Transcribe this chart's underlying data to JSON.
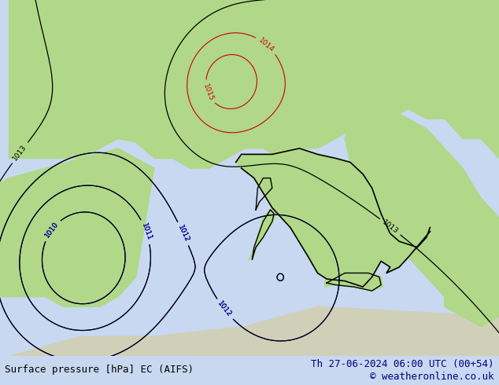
{
  "title_left": "Surface pressure [hPa] EC (AIFS)",
  "title_right": "Th 27-06-2024 06:00 UTC (00+54)",
  "copyright": "© weatheronline.co.uk",
  "bg_color": "#c8e0f0",
  "land_color": "#b8e0a0",
  "border_color": "#808080",
  "text_color_black": "#000000",
  "text_color_blue": "#0000cc",
  "text_color_red": "#cc0000",
  "footer_bg": "#d0d0d0",
  "figsize": [
    6.34,
    4.9
  ],
  "dpi": 100
}
